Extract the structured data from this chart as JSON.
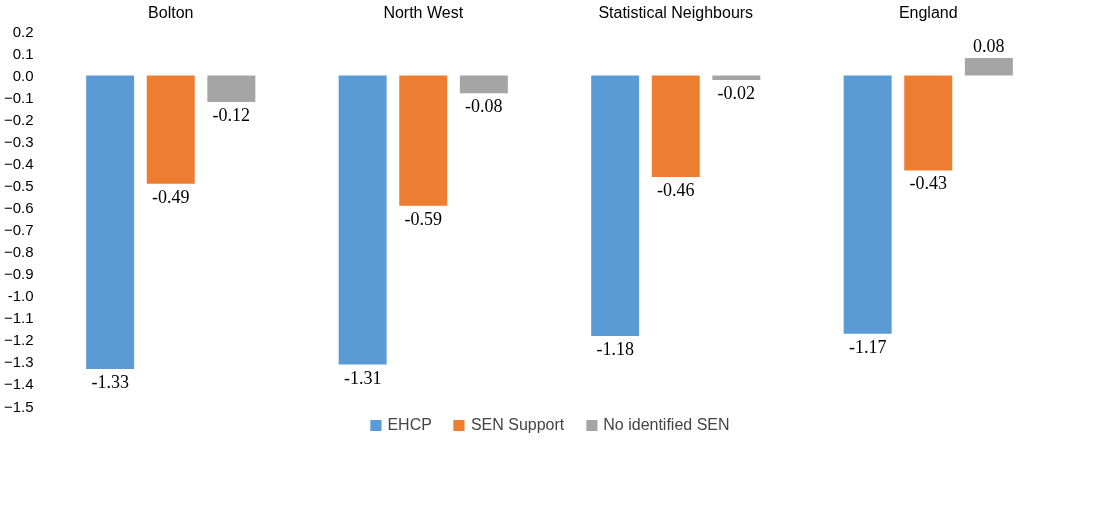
{
  "chart_data": {
    "type": "bar",
    "categories": [
      "Bolton",
      "North West",
      "Statistical Neighbours",
      "England"
    ],
    "series": [
      {
        "name": "EHCP",
        "color": "#5b9bd5",
        "values": [
          -1.33,
          -1.31,
          -1.18,
          -1.17
        ]
      },
      {
        "name": "SEN Support",
        "color": "#ed7d31",
        "values": [
          -0.49,
          -0.59,
          -0.46,
          -0.43
        ]
      },
      {
        "name": "No identified SEN",
        "color": "#a5a5a5",
        "values": [
          -0.12,
          -0.08,
          -0.02,
          0.08
        ]
      }
    ],
    "ylim": [
      -1.5,
      0.2
    ],
    "yticks": [
      0.2,
      0.1,
      {
        "value": 0,
        "label": "0.0"
      },
      -0.1,
      -0.2,
      -0.3,
      -0.4,
      -0.5,
      -0.6,
      -0.7,
      -0.8,
      -0.9,
      {
        "value": -1,
        "label": "-1.0"
      },
      -1.1,
      -1.2,
      -1.3,
      -1.4,
      -1.5
    ],
    "data_labels": true,
    "grid": false,
    "legend": "bottom"
  }
}
